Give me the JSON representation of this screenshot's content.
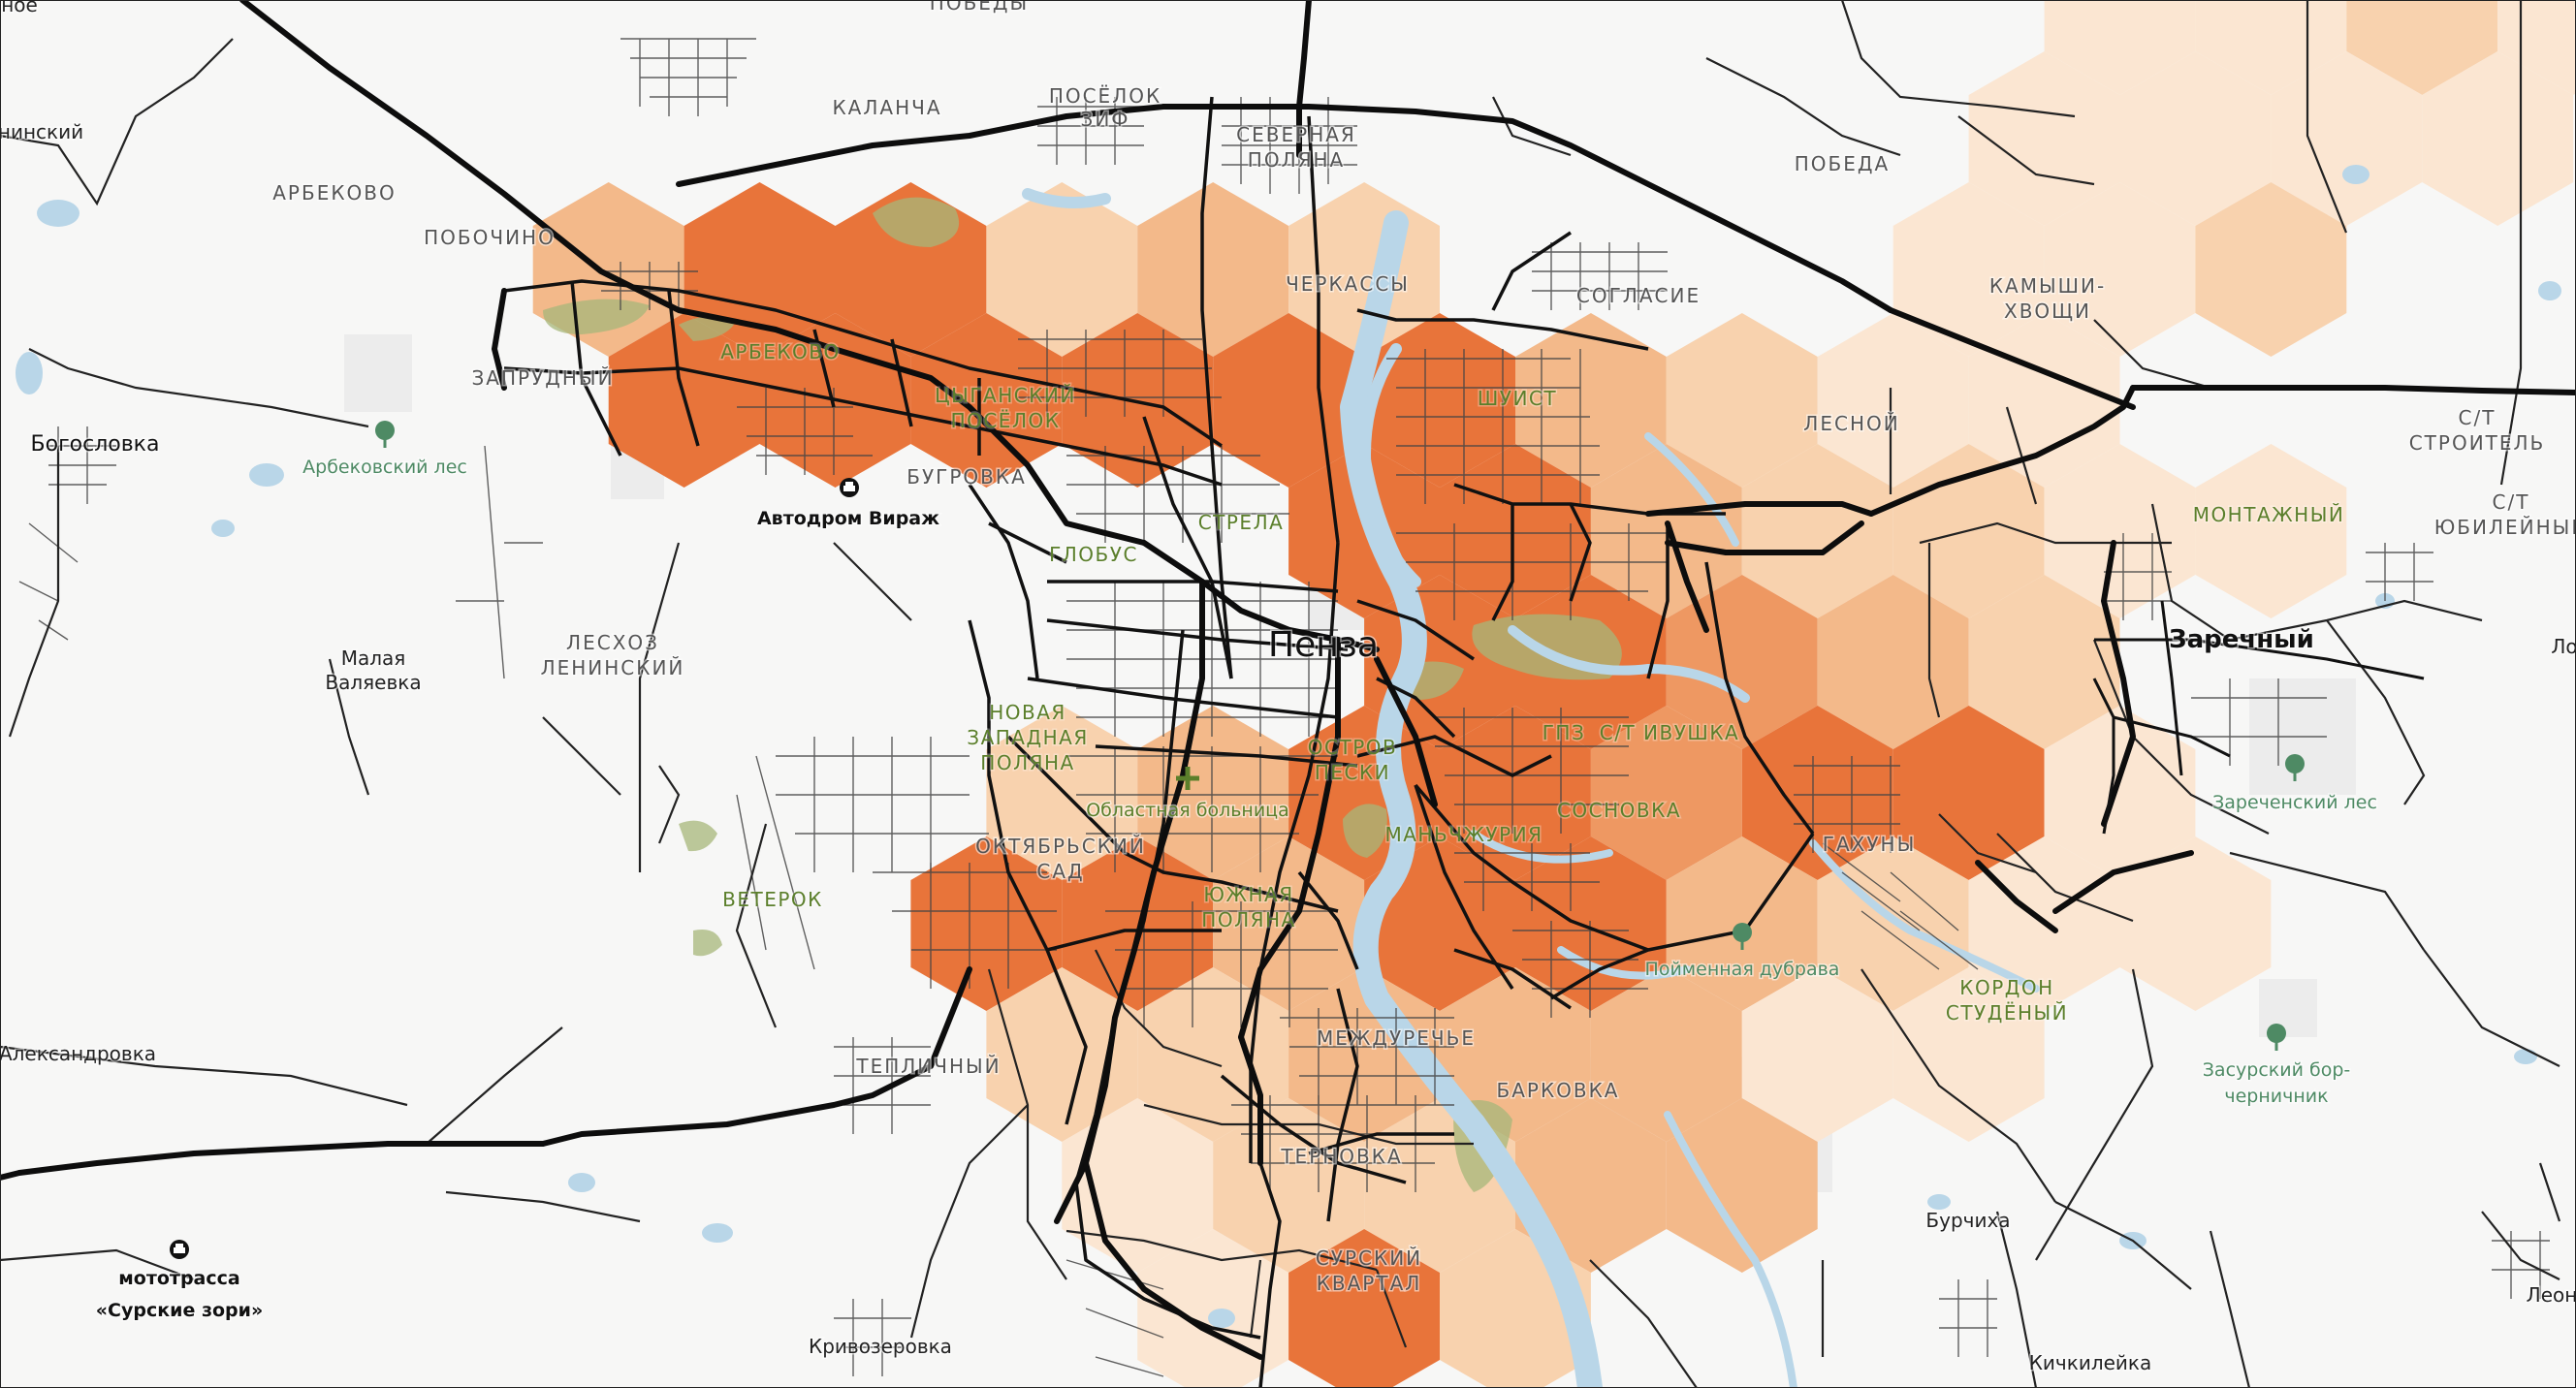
{
  "map": {
    "colors": {
      "level1": "#fbe6d2",
      "level2": "#f8d2ae",
      "level3": "#f3b98a",
      "level4": "#ee9862",
      "level5": "#e8743a",
      "water": "#b9d6e8",
      "park": "#a7b77a",
      "road": "#111111",
      "street": "#444444",
      "forest_icon": "#4e8a64",
      "hospital_icon": "#5b7f2b"
    },
    "icons": {
      "track": "racetrack-icon",
      "forest": "tree-icon",
      "hospital": "hospital-cross-icon"
    },
    "hex_levels": [
      {
        "c": 13,
        "r": 0,
        "level": 1
      },
      {
        "c": 14,
        "r": 0,
        "level": 1
      },
      {
        "c": 15,
        "r": 0,
        "level": 2
      },
      {
        "c": 16,
        "r": 0,
        "level": 1
      },
      {
        "c": 12,
        "r": 1,
        "level": 1
      },
      {
        "c": 13,
        "r": 1,
        "level": 1
      },
      {
        "c": 14,
        "r": 1,
        "level": 1
      },
      {
        "c": 15,
        "r": 1,
        "level": 1
      },
      {
        "c": 3,
        "r": 2,
        "level": 3
      },
      {
        "c": 4,
        "r": 2,
        "level": 5
      },
      {
        "c": 5,
        "r": 2,
        "level": 5
      },
      {
        "c": 6,
        "r": 2,
        "level": 2
      },
      {
        "c": 7,
        "r": 2,
        "level": 3
      },
      {
        "c": 8,
        "r": 2,
        "level": 2
      },
      {
        "c": 12,
        "r": 2,
        "level": 1
      },
      {
        "c": 13,
        "r": 2,
        "level": 1
      },
      {
        "c": 14,
        "r": 2,
        "level": 2
      },
      {
        "c": 3,
        "r": 3,
        "level": 5
      },
      {
        "c": 4,
        "r": 3,
        "level": 5
      },
      {
        "c": 5,
        "r": 3,
        "level": 5
      },
      {
        "c": 6,
        "r": 3,
        "level": 5
      },
      {
        "c": 7,
        "r": 3,
        "level": 5
      },
      {
        "c": 8,
        "r": 3,
        "level": 5
      },
      {
        "c": 9,
        "r": 3,
        "level": 3
      },
      {
        "c": 10,
        "r": 3,
        "level": 2
      },
      {
        "c": 11,
        "r": 3,
        "level": 1
      },
      {
        "c": 12,
        "r": 3,
        "level": 1
      },
      {
        "c": 21,
        "r": 3,
        "level": 1
      },
      {
        "c": 8,
        "r": 4,
        "level": 5
      },
      {
        "c": 9,
        "r": 4,
        "level": 5
      },
      {
        "c": 10,
        "r": 4,
        "level": 3
      },
      {
        "c": 11,
        "r": 4,
        "level": 2
      },
      {
        "c": 12,
        "r": 4,
        "level": 2
      },
      {
        "c": 13,
        "r": 4,
        "level": 1
      },
      {
        "c": 14,
        "r": 4,
        "level": 1
      },
      {
        "c": 20,
        "r": 4,
        "level": 5
      },
      {
        "c": 21,
        "r": 4,
        "level": 1
      },
      {
        "c": 8,
        "r": 5,
        "level": 5
      },
      {
        "c": 9,
        "r": 5,
        "level": 5
      },
      {
        "c": 10,
        "r": 5,
        "level": 4
      },
      {
        "c": 11,
        "r": 5,
        "level": 3
      },
      {
        "c": 12,
        "r": 5,
        "level": 2
      },
      {
        "c": 6,
        "r": 6,
        "level": 2
      },
      {
        "c": 7,
        "r": 6,
        "level": 3
      },
      {
        "c": 8,
        "r": 6,
        "level": 5
      },
      {
        "c": 9,
        "r": 6,
        "level": 5
      },
      {
        "c": 10,
        "r": 6,
        "level": 4
      },
      {
        "c": 11,
        "r": 6,
        "level": 5
      },
      {
        "c": 12,
        "r": 6,
        "level": 5
      },
      {
        "c": 13,
        "r": 6,
        "level": 1
      },
      {
        "c": 5,
        "r": 7,
        "level": 5
      },
      {
        "c": 6,
        "r": 7,
        "level": 5
      },
      {
        "c": 7,
        "r": 7,
        "level": 3
      },
      {
        "c": 8,
        "r": 7,
        "level": 5
      },
      {
        "c": 9,
        "r": 7,
        "level": 5
      },
      {
        "c": 10,
        "r": 7,
        "level": 3
      },
      {
        "c": 11,
        "r": 7,
        "level": 2
      },
      {
        "c": 12,
        "r": 7,
        "level": 1
      },
      {
        "c": 13,
        "r": 7,
        "level": 1
      },
      {
        "c": 17,
        "r": 7,
        "level": 5
      },
      {
        "c": 6,
        "r": 8,
        "level": 2
      },
      {
        "c": 7,
        "r": 8,
        "level": 2
      },
      {
        "c": 8,
        "r": 8,
        "level": 3
      },
      {
        "c": 9,
        "r": 8,
        "level": 3
      },
      {
        "c": 10,
        "r": 8,
        "level": 3
      },
      {
        "c": 11,
        "r": 8,
        "level": 1
      },
      {
        "c": 12,
        "r": 8,
        "level": 1
      },
      {
        "c": 6,
        "r": 9,
        "level": 1
      },
      {
        "c": 7,
        "r": 9,
        "level": 2
      },
      {
        "c": 8,
        "r": 9,
        "level": 2
      },
      {
        "c": 9,
        "r": 9,
        "level": 3
      },
      {
        "c": 10,
        "r": 9,
        "level": 3
      },
      {
        "c": 7,
        "r": 10,
        "level": 1
      },
      {
        "c": 8,
        "r": 10,
        "level": 5
      },
      {
        "c": 9,
        "r": 10,
        "level": 2
      }
    ],
    "labels": {
      "top_partial": "ПОБЕДЫ",
      "kalancha": "КАЛАНЧА",
      "poselok_zif_1": "ПОСЁЛОК",
      "poselok_zif_2": "ЗИФ",
      "severnaya_1": "СЕВЕРНАЯ",
      "severnaya_2": "ПОЛЯНА",
      "pobeda": "ПОБЕДА",
      "kamyshi_1": "КАМЫШИ-",
      "kamyshi_2": "ХВОЩИ",
      "arbekovo_top": "АРБЕКОВО",
      "pobochino": "ПОБОЧИНО",
      "arbekovo": "АРБЕКОВО",
      "zaprudny": "ЗАПРУДНЫЙ",
      "cherkassy": "ЧЕРКАССЫ",
      "soglasie": "СОГЛАСИЕ",
      "tsygansky_1": "ЦЫГАНСКИЙ",
      "tsygansky_2": "ПОСЁЛОК",
      "shuist": "ШУИСТ",
      "lesnoy": "ЛЕСНОЙ",
      "st_stroitel_1": "С/Т",
      "st_stroitel_2": "СТРОИТЕЛЬ",
      "bugrovka": "БУГРОВКА",
      "strela": "СТРЕЛА",
      "globus": "ГЛОБУС",
      "montazhny": "МОНТАЖНЫЙ",
      "st_yubileyny_1": "С/Т",
      "st_yubileyny_2": "ЮБИЛЕЙНЫЙ",
      "leskhoz_1": "ЛЕСХОЗ",
      "leskhoz_2": "ЛЕНИНСКИЙ",
      "penza": "Пенза",
      "zarechny": "Заречный",
      "novaya_1": "НОВАЯ",
      "novaya_2": "ЗАПАДНАЯ",
      "novaya_3": "ПОЛЯНА",
      "ostrov_1": "ОСТРОВ",
      "ostrov_2": "ПЕСКИ",
      "gpz": "ГПЗ",
      "st_ivushka": "С/Т ИВУШКА",
      "hospital": "Областная больница",
      "sosnovka": "СОСНОВКА",
      "manzhuria": "МАНЬЧЖУРИЯ",
      "veterok": "ВЕТЕРОК",
      "oktyabrsky_1": "ОКТЯБРЬСКИЙ",
      "oktyabrsky_2": "САД",
      "yuzhnaya_1": "ЮЖНАЯ",
      "yuzhnaya_2": "ПОЛЯНА",
      "gakhuny": "ГАХУНЫ",
      "kordon_1": "КОРДОН",
      "kordon_2": "СТУДЁНЫЙ",
      "teplichny": "ТЕПЛИЧНЫЙ",
      "mezhdurechye": "МЕЖДУРЕЧЬЕ",
      "barkovka": "БАРКОВКА",
      "ternovka": "ТЕРНОВКА",
      "sursky_1": "СУРСКИЙ",
      "sursky_2": "КВАРТАЛ",
      "edge_nko": "ное",
      "edge_ninsky": "нинский",
      "bogoslovka": "Богословка",
      "malaya_1": "Малая",
      "malaya_2": "Валяевка",
      "aleksandrovka": "Александровка",
      "burchikha": "Бурчиха",
      "krivozerovka": "Кривозеровка",
      "kichkileyka": "Кичкилейка",
      "edge_lo": "Ло",
      "edge_leoni": "Леон",
      "autodrom": "Автодром Вираж",
      "mototrassa_1": "мототрасса",
      "mototrassa_2": "«Сурские зори»",
      "arbekovsky_les": "Арбековский лес",
      "poymennaya": "Пойменная дубрава",
      "zarechensky_les": "Зареченский лес",
      "zasursky_1": "Засурский бор-",
      "zasursky_2": "черничник"
    }
  }
}
